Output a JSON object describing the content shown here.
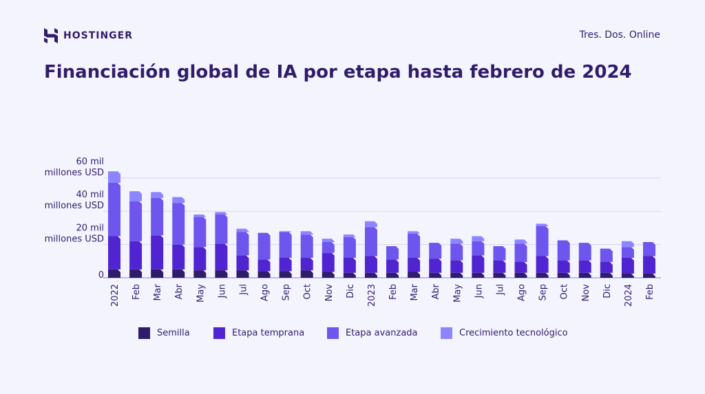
{
  "header": {
    "brand": "HOSTINGER",
    "site": "Tres. Dos. Online",
    "title": "Financiación global de IA por etapa hasta febrero de 2024"
  },
  "chart_data": {
    "type": "bar",
    "stacked": true,
    "title": "Financiación global de IA por etapa hasta febrero de 2024",
    "ylim": [
      0,
      60
    ],
    "yticks": [
      {
        "value": 0,
        "label": "0"
      },
      {
        "value": 20,
        "label": "20 mil millones USD"
      },
      {
        "value": 40,
        "label": "40 mil millones USD"
      },
      {
        "value": 60,
        "label": "60 mil millones USD"
      }
    ],
    "grid": true,
    "legend_position": "bottom",
    "categories": [
      "2022",
      "Feb",
      "Mar",
      "Abr",
      "May",
      "Jun",
      "Jul",
      "Ago",
      "Sep",
      "Oct",
      "Nov",
      "Dic",
      "2023",
      "Feb",
      "Mar",
      "Abr",
      "May",
      "Jun",
      "Jul",
      "Ago",
      "Sep",
      "Oct",
      "Nov",
      "Dic",
      "2024",
      "Feb"
    ],
    "series": [
      {
        "name": "Semilla",
        "color": "#2f1c6a",
        "values": [
          5,
          5,
          5,
          5,
          4.5,
          4.5,
          4.5,
          4,
          4,
          4.5,
          3.5,
          3,
          3,
          3,
          3.5,
          3,
          3,
          3,
          3,
          3,
          3,
          3,
          3,
          3,
          2.5,
          2.5
        ]
      },
      {
        "name": "Etapa temprana",
        "color": "#5025d1",
        "values": [
          20,
          17,
          20.5,
          15,
          14,
          16,
          9,
          7,
          8,
          7.5,
          11.5,
          9,
          10,
          8,
          8.5,
          8.5,
          7.5,
          10.5,
          7.5,
          6.5,
          10,
          7.5,
          7.5,
          6.5,
          9.5,
          10.5
        ]
      },
      {
        "name": "Etapa avanzada",
        "color": "#6d55ee",
        "values": [
          32,
          24,
          22.5,
          25,
          18,
          17.5,
          14,
          16,
          15.5,
          14,
          6.5,
          12.5,
          17.5,
          8,
          14.5,
          9.5,
          10,
          8.5,
          8.5,
          11,
          18,
          12,
          10.5,
          8,
          6.5,
          8.5
        ]
      },
      {
        "name": "Crecimiento tecnológico",
        "color": "#8c85ff",
        "values": [
          7,
          6,
          3.5,
          3.5,
          1.5,
          1.5,
          2,
          0,
          0.5,
          2,
          2,
          1.5,
          3.5,
          0,
          1.5,
          0,
          3,
          3,
          0,
          2.5,
          1.5,
          0,
          0,
          0,
          3.5,
          0
        ]
      }
    ]
  }
}
